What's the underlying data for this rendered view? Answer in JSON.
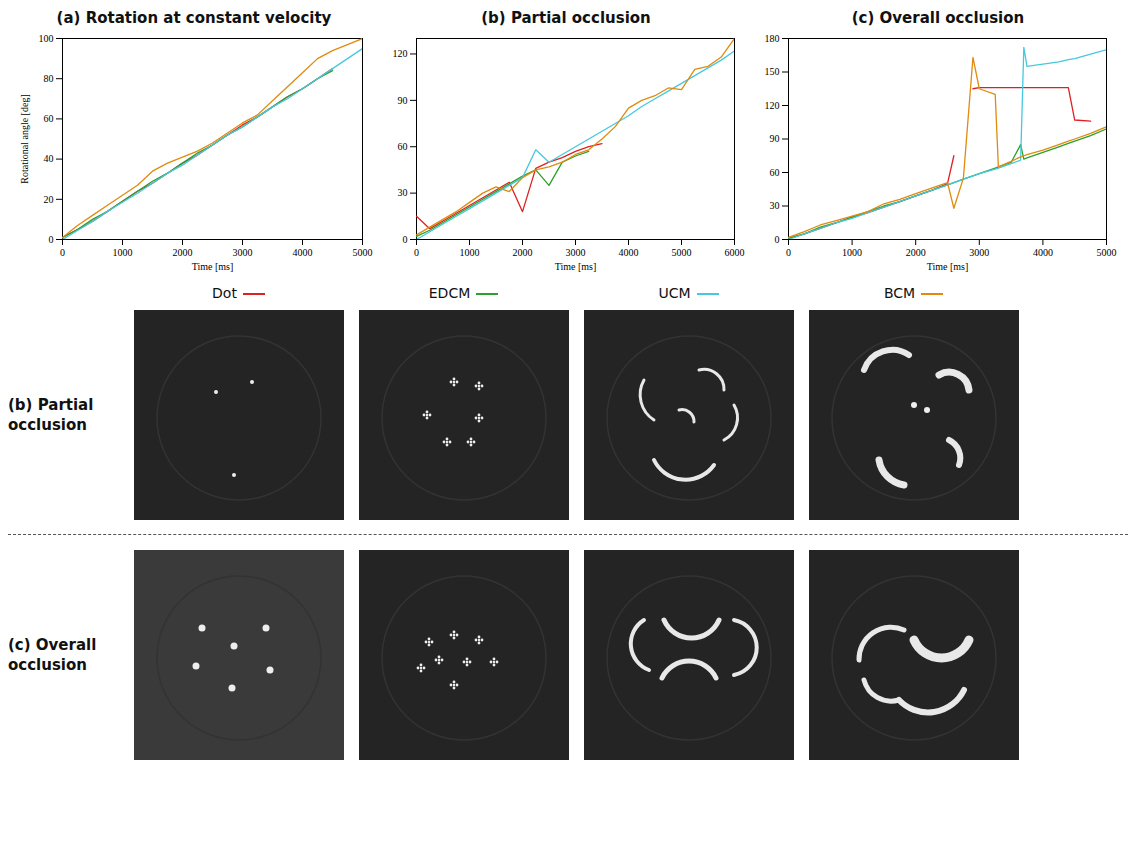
{
  "chart_data": [
    {
      "type": "line",
      "title": "(a) Rotation at constant velocity",
      "xlabel": "Time [ms]",
      "ylabel": "Rotational angle [deg]",
      "x": [
        0,
        250,
        500,
        750,
        1000,
        1250,
        1500,
        1750,
        2000,
        2250,
        2500,
        2750,
        3000,
        3250,
        3500,
        3750,
        4000,
        4250,
        4500,
        4750,
        5000
      ],
      "xlim": [
        0,
        5000
      ],
      "xticks": [
        0,
        1000,
        2000,
        3000,
        4000,
        5000
      ],
      "ylim": [
        0,
        100
      ],
      "yticks": [
        0,
        20,
        40,
        60,
        80,
        100
      ],
      "grid": false,
      "legend": "bottom",
      "series": [
        {
          "name": "Dot",
          "color": "#e02020",
          "values": [
            1,
            5,
            9,
            14,
            19,
            24,
            28,
            33,
            38,
            42,
            47,
            52,
            57,
            61,
            66,
            71,
            75,
            80,
            85,
            null,
            null
          ]
        },
        {
          "name": "EDCM",
          "color": "#2ca02c",
          "values": [
            1,
            5,
            10,
            14,
            19,
            24,
            29,
            33,
            38,
            43,
            47,
            52,
            56,
            61,
            66,
            71,
            75,
            80,
            84,
            null,
            null
          ]
        },
        {
          "name": "UCM",
          "color": "#45c8e0",
          "values": [
            0,
            4.5,
            9,
            14,
            18.5,
            23,
            28,
            33,
            37,
            42,
            47,
            52,
            56,
            61,
            66,
            70,
            75,
            80,
            85,
            90,
            95
          ]
        },
        {
          "name": "BCM",
          "color": "#e08a10",
          "values": [
            1,
            7,
            12,
            17,
            22,
            27,
            34,
            38,
            41,
            44,
            48,
            53,
            58,
            62,
            69,
            76,
            83,
            90,
            94,
            97,
            100
          ]
        }
      ]
    },
    {
      "type": "line",
      "title": "(b) Partial occlusion",
      "xlabel": "Time [ms]",
      "x": [
        0,
        250,
        500,
        750,
        1000,
        1250,
        1500,
        1750,
        2000,
        2250,
        2500,
        2750,
        3000,
        3250,
        3500,
        3750,
        4000,
        4250,
        4500,
        4750,
        5000,
        5250,
        5500,
        5750,
        6000
      ],
      "xlim": [
        0,
        6000
      ],
      "xticks": [
        0,
        1000,
        2000,
        3000,
        4000,
        5000,
        6000
      ],
      "ylim": [
        0,
        130
      ],
      "yticks": [
        0,
        30,
        60,
        90,
        120
      ],
      "grid": false,
      "legend": "bottom",
      "series": [
        {
          "name": "Dot",
          "color": "#e02020",
          "values": [
            15,
            7,
            12,
            17,
            22,
            27,
            32,
            37,
            18,
            46,
            50,
            53,
            57,
            60,
            62,
            null,
            null,
            null,
            null,
            null,
            null,
            null,
            null,
            null,
            null
          ]
        },
        {
          "name": "EDCM",
          "color": "#2ca02c",
          "values": [
            2,
            6,
            11,
            16,
            21,
            26,
            31,
            36,
            41,
            45,
            35,
            50,
            54,
            57,
            null,
            null,
            null,
            null,
            null,
            null,
            null,
            null,
            null,
            null,
            null
          ]
        },
        {
          "name": "UCM",
          "color": "#45c8e0",
          "values": [
            0,
            5,
            10,
            15,
            20,
            25,
            30,
            35,
            40,
            58,
            50,
            55,
            60,
            65,
            70,
            75,
            80,
            86,
            91,
            96,
            101,
            106,
            111,
            116,
            122
          ]
        },
        {
          "name": "BCM",
          "color": "#e08a10",
          "values": [
            3,
            8,
            13,
            18,
            24,
            30,
            34,
            31,
            40,
            45,
            47,
            50,
            55,
            58,
            65,
            73,
            85,
            90,
            93,
            98,
            97,
            110,
            112,
            118,
            130
          ]
        }
      ]
    },
    {
      "type": "line",
      "title": "(c) Overall occlusion",
      "xlabel": "Time [ms]",
      "x": [
        0,
        250,
        500,
        750,
        1000,
        1250,
        1500,
        1750,
        2000,
        2250,
        2500,
        2600,
        2750,
        2900,
        3000,
        3250,
        3300,
        3500,
        3650,
        3700,
        3750,
        4000,
        4250,
        4400,
        4500,
        4750,
        5000
      ],
      "xlim": [
        0,
        5000
      ],
      "xticks": [
        0,
        1000,
        2000,
        3000,
        4000,
        5000
      ],
      "ylim": [
        0,
        180
      ],
      "yticks": [
        0,
        30,
        60,
        90,
        120,
        150,
        180
      ],
      "grid": false,
      "legend": "bottom",
      "series": [
        {
          "name": "Dot",
          "color": "#e02020",
          "values": [
            1,
            5,
            10,
            15,
            20,
            24,
            29,
            34,
            39,
            44,
            50,
            75,
            null,
            135,
            136,
            136,
            136,
            136,
            136,
            136,
            136,
            136,
            136,
            136,
            107,
            106,
            null
          ]
        },
        {
          "name": "EDCM",
          "color": "#2ca02c",
          "values": [
            1,
            5,
            11,
            15,
            20,
            25,
            30,
            34,
            39,
            44,
            49,
            51,
            54,
            57,
            59,
            64,
            65,
            69,
            85,
            72,
            73,
            78,
            83,
            86,
            88,
            93,
            99
          ]
        },
        {
          "name": "UCM",
          "color": "#45c8e0",
          "values": [
            0,
            5,
            10,
            15,
            19,
            24,
            29,
            34,
            39,
            44,
            49,
            51,
            54,
            57,
            59,
            63,
            64,
            68,
            71,
            172,
            155,
            157,
            159,
            161,
            162,
            166,
            170
          ]
        },
        {
          "name": "BCM",
          "color": "#e08a10",
          "values": [
            2,
            7,
            13,
            17,
            21,
            25,
            32,
            36,
            41,
            46,
            51,
            28,
            55,
            163,
            135,
            130,
            65,
            70,
            74,
            75,
            76,
            80,
            85,
            88,
            90,
            95,
            101
          ]
        }
      ]
    }
  ],
  "image_grid": {
    "rows": [
      "(b) Partial occlusion",
      "(c) Overall occlusion"
    ]
  }
}
